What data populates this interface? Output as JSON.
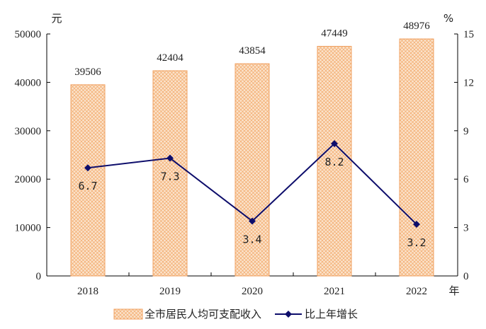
{
  "chart_data": {
    "type": "bar",
    "categories": [
      "2018",
      "2019",
      "2020",
      "2021",
      "2022"
    ],
    "series": [
      {
        "name": "全市居民人均可支配收入",
        "type": "bar",
        "axis": "left",
        "values": [
          39506,
          42404,
          43854,
          47449,
          48976
        ]
      },
      {
        "name": "比上年增长",
        "type": "line",
        "axis": "right",
        "values": [
          6.7,
          7.3,
          3.4,
          8.2,
          3.2
        ]
      }
    ],
    "title": "",
    "xlabel": "年",
    "ylabel_left": "元",
    "ylabel_right": "%",
    "ylim_left": [
      0,
      50000
    ],
    "ylim_right": [
      0,
      15
    ],
    "yticks_left": [
      0,
      10000,
      20000,
      30000,
      40000,
      50000
    ],
    "yticks_right": [
      0,
      3,
      6,
      9,
      12,
      15
    ],
    "bar_labels": [
      "39506",
      "42404",
      "43854",
      "47449",
      "48976"
    ],
    "line_labels": [
      "6.7",
      "7.3",
      "3.4",
      "8.2",
      "3.2"
    ],
    "legend_position": "bottom",
    "grid": false,
    "colors": {
      "bar_fill": "#fbe3cc",
      "bar_hatch": "#f2a868",
      "bar_edge": "#f0a060",
      "line": "#0d0d6b",
      "axis": "#000000"
    }
  }
}
